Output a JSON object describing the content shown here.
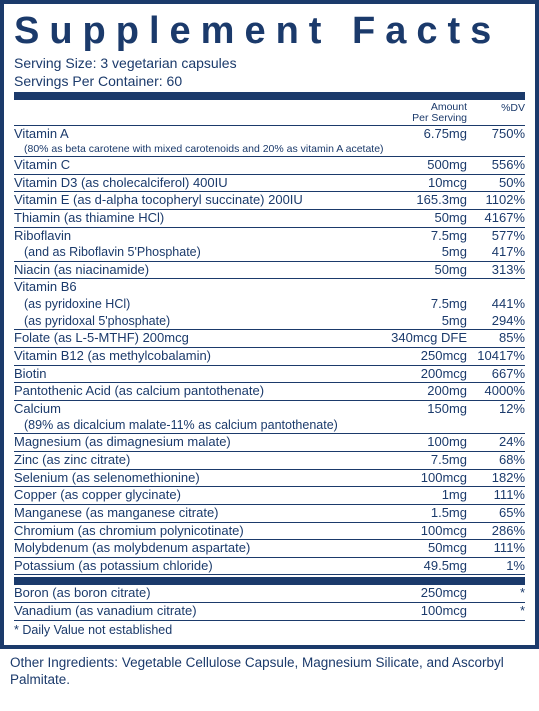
{
  "colors": {
    "brand": "#1b3a6b",
    "bg": "#ffffff"
  },
  "title": "Supplement Facts",
  "serving_size_label": "Serving Size:",
  "serving_size_value": "3 vegetarian capsules",
  "servings_label": "Servings Per Container:",
  "servings_value": "60",
  "header_amount_line1": "Amount",
  "header_amount_line2": "Per Serving",
  "header_dv": "%DV",
  "rows": [
    {
      "name": "Vitamin A",
      "amt": "6.75mg",
      "dv": "750%",
      "noborder": true
    },
    {
      "note": "(80% as beta carotene with mixed carotenoids and 20% as vitamin A acetate)",
      "indent": true
    },
    {
      "name": "Vitamin C",
      "amt": "500mg",
      "dv": "556%"
    },
    {
      "name": "Vitamin D3 (as cholecalciferol) 400IU",
      "amt": "10mcg",
      "dv": "50%"
    },
    {
      "name": "Vitamin E (as d-alpha tocopheryl succinate) 200IU",
      "amt": "165.3mg",
      "dv": "1102%"
    },
    {
      "name": "Thiamin (as thiamine HCl)",
      "amt": "50mg",
      "dv": "4167%"
    },
    {
      "name": "Riboflavin",
      "amt": "7.5mg",
      "dv": "577%",
      "noborder": true
    },
    {
      "sub": "(and as Riboflavin 5'Phosphate)",
      "amt": "5mg",
      "dv": "417%"
    },
    {
      "name": "Niacin (as niacinamide)",
      "amt": "50mg",
      "dv": "313%"
    },
    {
      "name": "Vitamin B6",
      "noborder": true
    },
    {
      "sub": "(as pyridoxine HCl)",
      "amt": "7.5mg",
      "dv": "441%",
      "noborder": true
    },
    {
      "sub": "(as pyridoxal 5'phosphate)",
      "amt": "5mg",
      "dv": "294%"
    },
    {
      "name": "Folate (as L-5-MTHF) 200mcg",
      "amt": "340mcg DFE",
      "dv": "85%"
    },
    {
      "name": "Vitamin B12 (as methylcobalamin)",
      "amt": "250mcg",
      "dv": "10417%"
    },
    {
      "name": "Biotin",
      "amt": "200mcg",
      "dv": "667%"
    },
    {
      "name": "Pantothenic Acid (as calcium pantothenate)",
      "amt": "200mg",
      "dv": "4000%"
    },
    {
      "name": "Calcium",
      "amt": "150mg",
      "dv": "12%",
      "noborder": true
    },
    {
      "sub": "(89% as dicalcium malate-11% as calcium pantothenate)"
    },
    {
      "name": "Magnesium (as dimagnesium malate)",
      "amt": "100mg",
      "dv": "24%"
    },
    {
      "name": "Zinc (as zinc citrate)",
      "amt": "7.5mg",
      "dv": "68%"
    },
    {
      "name": "Selenium (as selenomethionine)",
      "amt": "100mcg",
      "dv": "182%"
    },
    {
      "name": "Copper (as copper glycinate)",
      "amt": "1mg",
      "dv": "111%"
    },
    {
      "name": "Manganese (as manganese citrate)",
      "amt": "1.5mg",
      "dv": "65%"
    },
    {
      "name": "Chromium (as chromium polynicotinate)",
      "amt": "100mcg",
      "dv": "286%"
    },
    {
      "name": "Molybdenum (as molybdenum aspartate)",
      "amt": "50mcg",
      "dv": "111%"
    },
    {
      "name": "Potassium (as potassium chloride)",
      "amt": "49.5mg",
      "dv": "1%"
    }
  ],
  "rows2": [
    {
      "name": "Boron (as boron citrate)",
      "amt": "250mcg",
      "dv": "*"
    },
    {
      "name": "Vanadium (as vanadium citrate)",
      "amt": "100mcg",
      "dv": "*"
    }
  ],
  "footnote": "* Daily Value not established",
  "other_label": "Other Ingredients:",
  "other_value": "Vegetable Cellulose Capsule, Magnesium Silicate, and Ascorbyl Palmitate."
}
